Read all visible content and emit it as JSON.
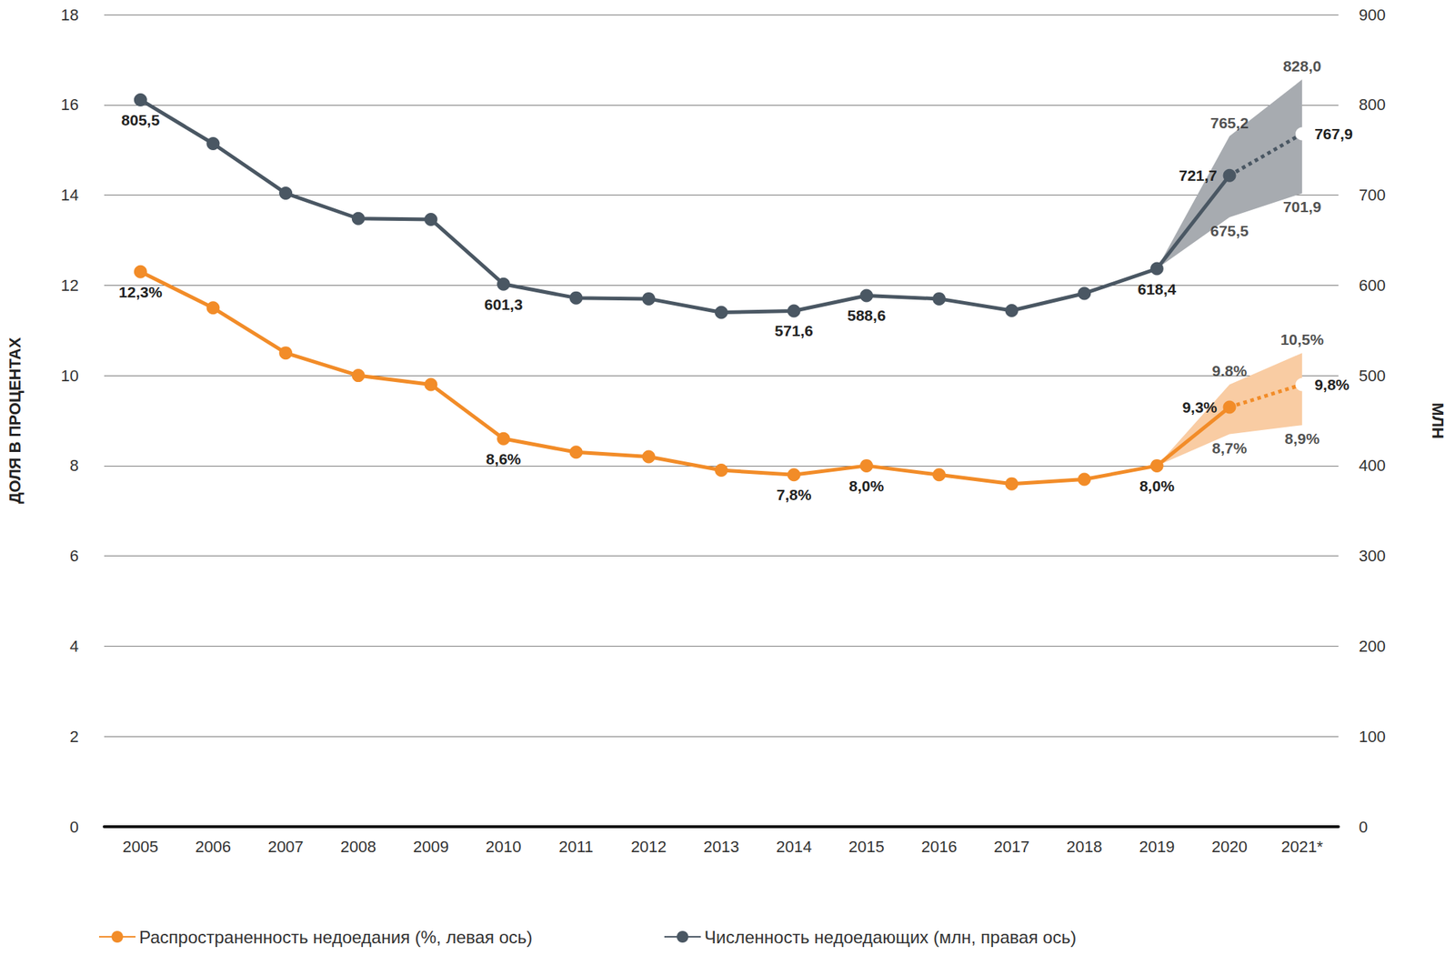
{
  "chart_data": {
    "type": "line",
    "categories": [
      "2005",
      "2006",
      "2007",
      "2008",
      "2009",
      "2010",
      "2011",
      "2012",
      "2013",
      "2014",
      "2015",
      "2016",
      "2017",
      "2018",
      "2019",
      "2020",
      "2021*"
    ],
    "series": [
      {
        "name": "Распространенность недоедания (%, левая ось)",
        "color": "#f28c28",
        "values": [
          12.3,
          11.5,
          10.5,
          10.0,
          9.8,
          8.6,
          8.3,
          8.2,
          7.9,
          7.8,
          8.0,
          7.8,
          7.6,
          7.7,
          8.0,
          9.3,
          9.8
        ],
        "value_labels": [
          "12,3%",
          null,
          null,
          null,
          null,
          "8,6%",
          null,
          null,
          null,
          "7,8%",
          "8,0%",
          null,
          null,
          null,
          "8,0%",
          "9,3%",
          "9,8%"
        ],
        "range": {
          "low": [
            null,
            null,
            null,
            null,
            null,
            null,
            null,
            null,
            null,
            null,
            null,
            null,
            null,
            null,
            8.0,
            8.7,
            8.9
          ],
          "high": [
            null,
            null,
            null,
            null,
            null,
            null,
            null,
            null,
            null,
            null,
            null,
            null,
            null,
            null,
            8.0,
            9.8,
            10.5
          ],
          "low_labels": [
            null,
            null,
            null,
            null,
            null,
            null,
            null,
            null,
            null,
            null,
            null,
            null,
            null,
            null,
            null,
            "8,7%",
            "8,9%"
          ],
          "high_labels": [
            null,
            null,
            null,
            null,
            null,
            null,
            null,
            null,
            null,
            null,
            null,
            null,
            null,
            null,
            null,
            "9.8%",
            "10,5%"
          ],
          "color": "#f9cca3"
        },
        "projection": {
          "from": "2020",
          "line_style": "dotted",
          "marker": "empty circle"
        }
      },
      {
        "name": "Численность недоедающих (млн, правая ось)",
        "color": "#4a5763",
        "axis": "y2",
        "values": [
          805.5,
          757,
          702,
          674,
          673,
          601.3,
          586,
          585,
          570,
          571.6,
          588.6,
          585,
          572,
          591,
          618.4,
          721.7,
          767.9
        ],
        "value_labels": [
          "805,5",
          null,
          null,
          null,
          null,
          "601,3",
          null,
          null,
          null,
          "571,6",
          "588,6",
          null,
          null,
          null,
          "618,4",
          "721,7",
          "767,9"
        ],
        "range": {
          "low": [
            null,
            null,
            null,
            null,
            null,
            null,
            null,
            null,
            null,
            null,
            null,
            null,
            null,
            null,
            618.4,
            675.5,
            701.9
          ],
          "high": [
            null,
            null,
            null,
            null,
            null,
            null,
            null,
            null,
            null,
            null,
            null,
            null,
            null,
            null,
            618.4,
            765.2,
            828.0
          ],
          "low_labels": [
            null,
            null,
            null,
            null,
            null,
            null,
            null,
            null,
            null,
            null,
            null,
            null,
            null,
            null,
            null,
            "675,5",
            "701,9"
          ],
          "high_labels": [
            null,
            null,
            null,
            null,
            null,
            null,
            null,
            null,
            null,
            null,
            null,
            null,
            null,
            null,
            null,
            "765,2",
            "828,0"
          ],
          "color": "#a7abb0"
        },
        "projection": {
          "from": "2020",
          "line_style": "dotted",
          "marker": "empty circle"
        }
      }
    ],
    "ylim": [
      0,
      18
    ],
    "yticks": [
      0,
      2,
      4,
      6,
      8,
      10,
      12,
      14,
      16,
      18
    ],
    "y2lim": [
      0,
      900
    ],
    "y2ticks": [
      0,
      100,
      200,
      300,
      400,
      500,
      600,
      700,
      800,
      900
    ],
    "ylabel": "ДОЛЯ В ПРОЦЕНТАХ",
    "y2label": "МЛН",
    "grid": true,
    "legend": "bottom",
    "data_labels": true,
    "marker": "circle",
    "line_style": "solid"
  }
}
